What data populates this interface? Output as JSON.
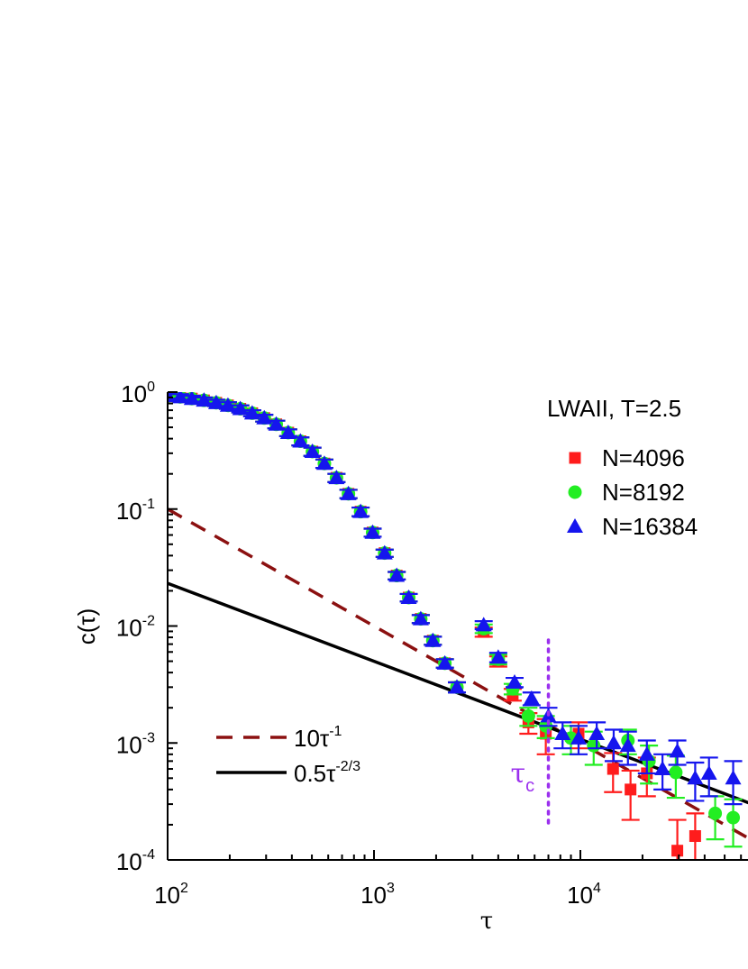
{
  "chart_data": {
    "type": "scatter",
    "title": "LWAII, T=2.5",
    "xlabel": "τ",
    "ylabel": "c(τ)",
    "x_scale": "log",
    "y_scale": "log",
    "xlim": [
      100,
      60000
    ],
    "ylim": [
      0.0001,
      1
    ],
    "x_ticks": [
      {
        "base": "10",
        "exp": "2"
      },
      {
        "base": "10",
        "exp": "3"
      },
      {
        "base": "10",
        "exp": "4"
      }
    ],
    "y_ticks": [
      {
        "base": "10",
        "exp": "0"
      },
      {
        "base": "10",
        "exp": "-1"
      },
      {
        "base": "10",
        "exp": "-2"
      },
      {
        "base": "10",
        "exp": "-3"
      },
      {
        "base": "10",
        "exp": "-4"
      }
    ],
    "annotation": {
      "base": "τ",
      "sub": "c",
      "x": 7000
    },
    "lines": [
      {
        "label_base": "10τ",
        "label_exp": "-1",
        "coef": 10,
        "power": -1,
        "color": "#8b1010",
        "style": "dashed"
      },
      {
        "label_base": "0.5τ",
        "label_exp": "-2/3",
        "coef": 0.5,
        "power": -0.6667,
        "color": "#000000",
        "style": "solid"
      }
    ],
    "series": [
      {
        "name": "N=4096",
        "marker": "square",
        "color": "#ff1c1c",
        "err_color": "#ff1c1c",
        "points": [
          [
            100,
            0.93,
            0.05
          ],
          [
            115,
            0.91,
            0.05
          ],
          [
            131,
            0.88,
            0.05
          ],
          [
            150,
            0.85,
            0.05
          ],
          [
            172,
            0.81,
            0.05
          ],
          [
            196,
            0.77,
            0.05
          ],
          [
            225,
            0.72,
            0.05
          ],
          [
            257,
            0.66,
            0.04
          ],
          [
            294,
            0.6,
            0.04
          ],
          [
            336,
            0.53,
            0.04
          ],
          [
            384,
            0.45,
            0.03
          ],
          [
            440,
            0.38,
            0.03
          ],
          [
            503,
            0.31,
            0.025
          ],
          [
            575,
            0.245,
            0.02
          ],
          [
            658,
            0.185,
            0.015
          ],
          [
            752,
            0.135,
            0.011
          ],
          [
            861,
            0.095,
            0.008
          ],
          [
            985,
            0.063,
            0.005
          ],
          [
            1126,
            0.042,
            0.003
          ],
          [
            1288,
            0.027,
            0.002
          ],
          [
            1473,
            0.0175,
            0.0013
          ],
          [
            1685,
            0.0115,
            0.0009
          ],
          [
            1928,
            0.0075,
            0.0006
          ],
          [
            2205,
            0.0048,
            0.0004
          ],
          [
            2522,
            0.003,
            0.0003
          ],
          [
            3400,
            0.0089,
            0.0008
          ],
          [
            4000,
            0.005,
            0.0005
          ],
          [
            4700,
            0.0026,
            0.0003
          ],
          [
            5600,
            0.0015,
            0.0003
          ],
          [
            6800,
            0.0012,
            0.0004
          ],
          [
            9800,
            0.0012,
            0.0003
          ],
          [
            14400,
            0.0006,
            0.00022
          ],
          [
            17500,
            0.0004,
            0.00018
          ],
          [
            21000,
            0.00055,
            0.0002
          ],
          [
            29500,
            0.00012,
            0.0001
          ],
          [
            36000,
            0.00016,
            9e-05
          ]
        ]
      },
      {
        "name": "N=8192",
        "marker": "circle",
        "color": "#22ee22",
        "err_color": "#22ee22",
        "points": [
          [
            100,
            0.93,
            0.05
          ],
          [
            115,
            0.91,
            0.05
          ],
          [
            131,
            0.88,
            0.05
          ],
          [
            150,
            0.85,
            0.05
          ],
          [
            172,
            0.81,
            0.05
          ],
          [
            196,
            0.77,
            0.05
          ],
          [
            225,
            0.72,
            0.05
          ],
          [
            257,
            0.66,
            0.04
          ],
          [
            294,
            0.6,
            0.04
          ],
          [
            336,
            0.53,
            0.04
          ],
          [
            384,
            0.45,
            0.03
          ],
          [
            440,
            0.38,
            0.03
          ],
          [
            503,
            0.31,
            0.025
          ],
          [
            575,
            0.245,
            0.02
          ],
          [
            658,
            0.185,
            0.015
          ],
          [
            752,
            0.135,
            0.011
          ],
          [
            861,
            0.095,
            0.008
          ],
          [
            985,
            0.063,
            0.005
          ],
          [
            1126,
            0.042,
            0.003
          ],
          [
            1288,
            0.027,
            0.002
          ],
          [
            1473,
            0.0175,
            0.0013
          ],
          [
            1685,
            0.0115,
            0.0009
          ],
          [
            1928,
            0.0075,
            0.0006
          ],
          [
            2205,
            0.0048,
            0.0004
          ],
          [
            2522,
            0.003,
            0.0003
          ],
          [
            3400,
            0.0095,
            0.0008
          ],
          [
            4000,
            0.0052,
            0.0005
          ],
          [
            4700,
            0.0029,
            0.0003
          ],
          [
            5600,
            0.0017,
            0.0003
          ],
          [
            6800,
            0.0014,
            0.0003
          ],
          [
            9000,
            0.0011,
            0.0003
          ],
          [
            11600,
            0.00095,
            0.0003
          ],
          [
            17000,
            0.00105,
            0.00025
          ],
          [
            21500,
            0.0007,
            0.00025
          ],
          [
            29000,
            0.00056,
            0.00022
          ],
          [
            45000,
            0.00025,
            0.0001
          ],
          [
            55000,
            0.00023,
            0.0001
          ]
        ]
      },
      {
        "name": "N=16384",
        "marker": "triangle",
        "color": "#1515ee",
        "err_color": "#1515ee",
        "points": [
          [
            100,
            0.93,
            0.05
          ],
          [
            115,
            0.91,
            0.05
          ],
          [
            131,
            0.88,
            0.05
          ],
          [
            150,
            0.85,
            0.05
          ],
          [
            172,
            0.81,
            0.05
          ],
          [
            196,
            0.77,
            0.05
          ],
          [
            225,
            0.72,
            0.05
          ],
          [
            257,
            0.66,
            0.04
          ],
          [
            294,
            0.6,
            0.04
          ],
          [
            336,
            0.53,
            0.04
          ],
          [
            384,
            0.45,
            0.03
          ],
          [
            440,
            0.38,
            0.03
          ],
          [
            503,
            0.31,
            0.025
          ],
          [
            575,
            0.245,
            0.02
          ],
          [
            658,
            0.185,
            0.015
          ],
          [
            752,
            0.135,
            0.011
          ],
          [
            861,
            0.095,
            0.008
          ],
          [
            985,
            0.063,
            0.005
          ],
          [
            1126,
            0.042,
            0.003
          ],
          [
            1288,
            0.027,
            0.002
          ],
          [
            1473,
            0.0175,
            0.0013
          ],
          [
            1685,
            0.0115,
            0.0009
          ],
          [
            1928,
            0.0075,
            0.0006
          ],
          [
            2205,
            0.0048,
            0.0004
          ],
          [
            2522,
            0.003,
            0.0003
          ],
          [
            3400,
            0.0102,
            0.0008
          ],
          [
            4000,
            0.0054,
            0.0005
          ],
          [
            4800,
            0.0033,
            0.0003
          ],
          [
            5800,
            0.0024,
            0.0003
          ],
          [
            7000,
            0.0017,
            0.0003
          ],
          [
            8200,
            0.0012,
            0.0003
          ],
          [
            9800,
            0.0011,
            0.0003
          ],
          [
            12000,
            0.0012,
            0.0003
          ],
          [
            14500,
            0.001,
            0.0003
          ],
          [
            17000,
            0.00095,
            0.0003
          ],
          [
            21000,
            0.0008,
            0.00025
          ],
          [
            25000,
            0.0006,
            0.0002
          ],
          [
            29500,
            0.00085,
            0.0002
          ],
          [
            36000,
            0.0005,
            0.00018
          ],
          [
            42000,
            0.00055,
            0.0002
          ],
          [
            55000,
            0.0005,
            0.0002
          ]
        ]
      }
    ]
  }
}
